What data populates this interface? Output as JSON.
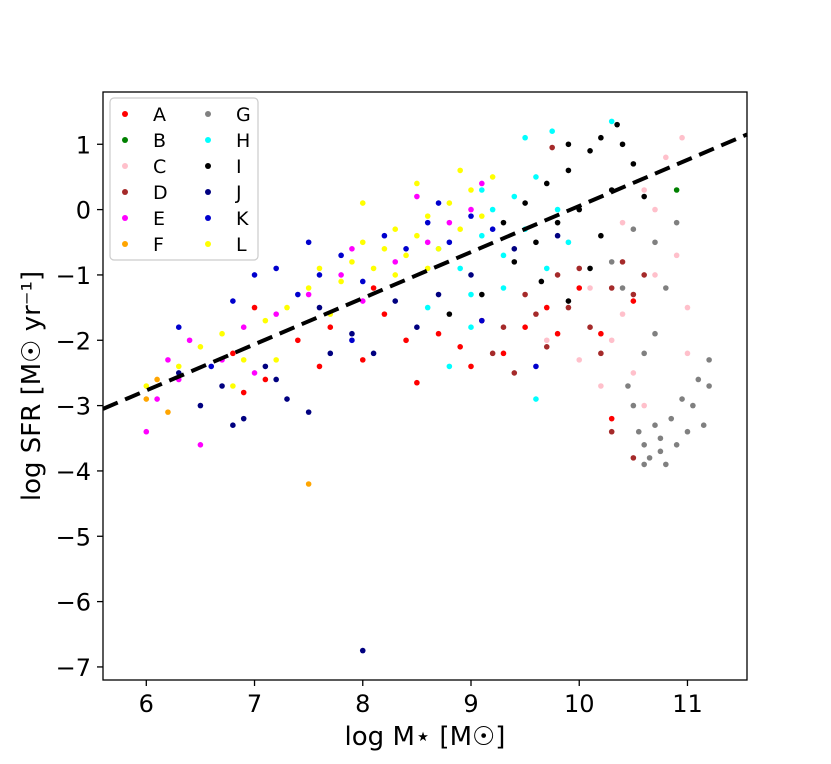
{
  "chart_data": {
    "type": "scatter",
    "xlabel": "log M⋆ [M☉]",
    "ylabel": "log SFR [M☉ yr⁻¹]",
    "xlim": [
      5.6,
      11.55
    ],
    "ylim": [
      -7.2,
      1.8
    ],
    "xticks": [
      6,
      7,
      8,
      9,
      10,
      11
    ],
    "yticks": [
      1,
      0,
      -1,
      -2,
      -3,
      -4,
      -5,
      -6,
      -7
    ],
    "xtick_labels": [
      "6",
      "7",
      "8",
      "9",
      "10",
      "11"
    ],
    "ytick_labels": [
      "1",
      "0",
      "−1",
      "−2",
      "−3",
      "−4",
      "−5",
      "−6",
      "−7"
    ],
    "grid": false,
    "legend_position": "upper-left",
    "legend_columns": 2,
    "fit_line": {
      "style": "dashed",
      "color": "#000000",
      "points": [
        [
          5.6,
          -3.05
        ],
        [
          11.55,
          1.15
        ]
      ]
    },
    "series": [
      {
        "name": "A",
        "color": "#ff0000",
        "points": [
          [
            6.8,
            -2.2
          ],
          [
            7.1,
            -2.6
          ],
          [
            7.4,
            -2.0
          ],
          [
            7.7,
            -1.8
          ],
          [
            8.0,
            -2.3
          ],
          [
            8.2,
            -1.6
          ],
          [
            8.4,
            -2.0
          ],
          [
            8.5,
            -2.65
          ],
          [
            8.7,
            -1.9
          ],
          [
            8.9,
            -2.1
          ],
          [
            9.1,
            -1.7
          ],
          [
            9.3,
            -2.2
          ],
          [
            9.5,
            -1.8
          ],
          [
            9.7,
            -1.5
          ],
          [
            10.0,
            -1.2
          ],
          [
            10.2,
            -1.9
          ],
          [
            10.3,
            -3.2
          ],
          [
            7.0,
            -1.5
          ],
          [
            6.9,
            -2.8
          ],
          [
            7.6,
            -2.4
          ],
          [
            8.1,
            -1.2
          ],
          [
            9.0,
            -2.4
          ],
          [
            9.8,
            -1.9
          ],
          [
            10.5,
            -1.4
          ]
        ]
      },
      {
        "name": "B",
        "color": "#008000",
        "points": [
          [
            10.9,
            0.3
          ]
        ]
      },
      {
        "name": "C",
        "color": "#ffc0cb",
        "points": [
          [
            9.9,
            -0.5
          ],
          [
            10.1,
            -1.2
          ],
          [
            10.3,
            -2.0
          ],
          [
            10.4,
            -0.2
          ],
          [
            10.6,
            0.3
          ],
          [
            10.7,
            -1.0
          ],
          [
            10.9,
            -0.7
          ],
          [
            11.0,
            -1.5
          ],
          [
            10.5,
            -2.5
          ],
          [
            10.2,
            -2.7
          ],
          [
            10.8,
            0.8
          ],
          [
            10.95,
            1.1
          ],
          [
            11.0,
            -2.2
          ],
          [
            10.4,
            -1.6
          ],
          [
            10.0,
            -2.3
          ],
          [
            10.6,
            -3.0
          ],
          [
            9.7,
            -2.0
          ],
          [
            10.7,
            0.0
          ]
        ]
      },
      {
        "name": "D",
        "color": "#a52a2a",
        "points": [
          [
            9.3,
            -1.8
          ],
          [
            9.5,
            -1.3
          ],
          [
            9.7,
            -2.1
          ],
          [
            9.9,
            -1.5
          ],
          [
            10.0,
            -0.9
          ],
          [
            10.1,
            -1.8
          ],
          [
            10.3,
            -1.2
          ],
          [
            10.4,
            -0.8
          ],
          [
            10.2,
            -2.2
          ],
          [
            9.8,
            -1.0
          ],
          [
            9.6,
            -1.6
          ],
          [
            10.5,
            -1.3
          ],
          [
            9.4,
            -2.5
          ],
          [
            10.3,
            -3.4
          ],
          [
            10.5,
            -3.8
          ],
          [
            9.75,
            0.95
          ],
          [
            9.2,
            -2.2
          ],
          [
            10.6,
            -1.0
          ]
        ]
      },
      {
        "name": "E",
        "color": "#ff00ff",
        "points": [
          [
            6.0,
            -3.4
          ],
          [
            6.1,
            -2.9
          ],
          [
            6.3,
            -2.6
          ],
          [
            6.5,
            -3.6
          ],
          [
            6.7,
            -2.3
          ],
          [
            6.9,
            -1.8
          ],
          [
            7.2,
            -1.6
          ],
          [
            7.5,
            -1.3
          ],
          [
            7.8,
            -1.0
          ],
          [
            8.0,
            -1.4
          ],
          [
            8.3,
            -0.8
          ],
          [
            8.6,
            -0.5
          ],
          [
            8.8,
            -0.2
          ],
          [
            9.0,
            0.0
          ],
          [
            6.4,
            -2.0
          ],
          [
            7.0,
            -2.5
          ],
          [
            7.9,
            -0.6
          ],
          [
            8.5,
            0.2
          ],
          [
            9.1,
            0.4
          ],
          [
            6.2,
            -2.3
          ]
        ]
      },
      {
        "name": "F",
        "color": "#ffa500",
        "points": [
          [
            7.5,
            -4.2
          ],
          [
            6.0,
            -2.9
          ],
          [
            6.2,
            -3.1
          ],
          [
            6.1,
            -2.6
          ]
        ]
      },
      {
        "name": "G",
        "color": "#808080",
        "points": [
          [
            10.5,
            -3.0
          ],
          [
            10.55,
            -3.4
          ],
          [
            10.6,
            -3.6
          ],
          [
            10.65,
            -3.8
          ],
          [
            10.7,
            -3.3
          ],
          [
            10.75,
            -3.5
          ],
          [
            10.8,
            -3.9
          ],
          [
            10.85,
            -3.2
          ],
          [
            10.9,
            -3.6
          ],
          [
            10.95,
            -2.9
          ],
          [
            11.0,
            -3.4
          ],
          [
            11.05,
            -3.0
          ],
          [
            11.1,
            -2.6
          ],
          [
            11.15,
            -3.3
          ],
          [
            11.2,
            -2.7
          ],
          [
            10.45,
            -2.7
          ],
          [
            10.6,
            -2.2
          ],
          [
            10.7,
            -1.9
          ],
          [
            10.4,
            -1.2
          ],
          [
            10.3,
            -0.8
          ],
          [
            10.5,
            -0.3
          ],
          [
            10.7,
            -0.5
          ],
          [
            10.8,
            -1.2
          ],
          [
            10.9,
            -0.2
          ],
          [
            10.6,
            -3.9
          ],
          [
            10.75,
            -3.7
          ],
          [
            11.2,
            -2.3
          ]
        ]
      },
      {
        "name": "H",
        "color": "#00ffff",
        "points": [
          [
            8.7,
            -0.6
          ],
          [
            8.9,
            -0.9
          ],
          [
            9.0,
            -1.3
          ],
          [
            9.1,
            -0.4
          ],
          [
            9.2,
            0.0
          ],
          [
            9.3,
            -0.7
          ],
          [
            9.4,
            0.2
          ],
          [
            9.5,
            -0.3
          ],
          [
            9.6,
            0.5
          ],
          [
            9.7,
            -0.9
          ],
          [
            9.8,
            0.0
          ],
          [
            9.9,
            -0.5
          ],
          [
            10.3,
            1.35
          ],
          [
            9.5,
            1.1
          ],
          [
            9.75,
            1.2
          ],
          [
            9.3,
            -1.2
          ],
          [
            9.0,
            -1.8
          ],
          [
            8.8,
            -2.4
          ],
          [
            8.6,
            -1.5
          ],
          [
            9.6,
            -2.9
          ],
          [
            9.1,
            0.3
          ]
        ]
      },
      {
        "name": "I",
        "color": "#000000",
        "points": [
          [
            9.3,
            -0.2
          ],
          [
            9.5,
            0.1
          ],
          [
            9.6,
            -0.5
          ],
          [
            9.7,
            0.4
          ],
          [
            9.8,
            -0.2
          ],
          [
            9.9,
            0.6
          ],
          [
            10.0,
            0.0
          ],
          [
            10.1,
            0.9
          ],
          [
            10.2,
            -0.4
          ],
          [
            10.3,
            0.3
          ],
          [
            10.4,
            1.0
          ],
          [
            10.5,
            0.7
          ],
          [
            10.2,
            1.1
          ],
          [
            10.35,
            1.3
          ],
          [
            9.9,
            1.0
          ],
          [
            9.65,
            -1.1
          ],
          [
            9.9,
            -1.4
          ],
          [
            10.1,
            -0.9
          ],
          [
            9.4,
            -0.8
          ],
          [
            10.6,
            0.2
          ],
          [
            9.1,
            -1.3
          ],
          [
            8.8,
            -1.6
          ]
        ]
      },
      {
        "name": "J",
        "color": "#000080",
        "points": [
          [
            6.3,
            -2.5
          ],
          [
            6.5,
            -3.0
          ],
          [
            6.7,
            -2.7
          ],
          [
            6.9,
            -3.2
          ],
          [
            7.1,
            -2.4
          ],
          [
            7.3,
            -2.9
          ],
          [
            7.5,
            -3.1
          ],
          [
            7.7,
            -2.2
          ],
          [
            7.9,
            -1.9
          ],
          [
            8.1,
            -2.2
          ],
          [
            8.3,
            -1.4
          ],
          [
            8.5,
            -1.8
          ],
          [
            8.0,
            -6.75
          ],
          [
            6.8,
            -3.3
          ],
          [
            7.2,
            -2.6
          ],
          [
            7.6,
            -1.5
          ],
          [
            8.7,
            -1.3
          ],
          [
            9.0,
            -1.0
          ],
          [
            9.4,
            -0.6
          ],
          [
            9.8,
            -0.4
          ]
        ]
      },
      {
        "name": "K",
        "color": "#0000cd",
        "points": [
          [
            6.3,
            -1.8
          ],
          [
            6.6,
            -2.4
          ],
          [
            6.8,
            -1.4
          ],
          [
            7.0,
            -1.0
          ],
          [
            7.2,
            -0.9
          ],
          [
            7.4,
            -1.3
          ],
          [
            7.6,
            -1.0
          ],
          [
            7.8,
            -0.7
          ],
          [
            8.0,
            -1.1
          ],
          [
            8.2,
            -0.4
          ],
          [
            8.4,
            -0.6
          ],
          [
            8.6,
            -0.2
          ],
          [
            8.8,
            -0.5
          ],
          [
            9.0,
            -0.1
          ],
          [
            9.2,
            -0.3
          ],
          [
            9.6,
            -2.4
          ],
          [
            9.1,
            -1.7
          ],
          [
            7.9,
            -2.0
          ],
          [
            7.5,
            -0.5
          ],
          [
            8.7,
            0.1
          ]
        ]
      },
      {
        "name": "L",
        "color": "#ffff00",
        "points": [
          [
            6.0,
            -2.7
          ],
          [
            6.3,
            -2.4
          ],
          [
            6.5,
            -2.1
          ],
          [
            6.7,
            -1.9
          ],
          [
            6.9,
            -2.3
          ],
          [
            7.1,
            -1.7
          ],
          [
            7.3,
            -1.5
          ],
          [
            7.5,
            -1.2
          ],
          [
            7.6,
            -0.9
          ],
          [
            7.8,
            -1.1
          ],
          [
            7.9,
            -0.8
          ],
          [
            8.0,
            -0.5
          ],
          [
            8.1,
            -0.9
          ],
          [
            8.2,
            -0.6
          ],
          [
            8.3,
            -0.3
          ],
          [
            8.4,
            -0.7
          ],
          [
            8.5,
            -0.4
          ],
          [
            8.6,
            -0.1
          ],
          [
            8.7,
            -0.6
          ],
          [
            8.8,
            0.1
          ],
          [
            8.9,
            -0.3
          ],
          [
            9.0,
            0.3
          ],
          [
            9.1,
            -0.1
          ],
          [
            9.2,
            0.5
          ],
          [
            8.3,
            -1.0
          ],
          [
            8.6,
            -0.9
          ],
          [
            7.7,
            -1.6
          ],
          [
            8.9,
            0.6
          ],
          [
            6.8,
            -2.7
          ],
          [
            7.2,
            -2.3
          ],
          [
            8.0,
            0.1
          ],
          [
            8.5,
            0.4
          ]
        ]
      }
    ]
  }
}
